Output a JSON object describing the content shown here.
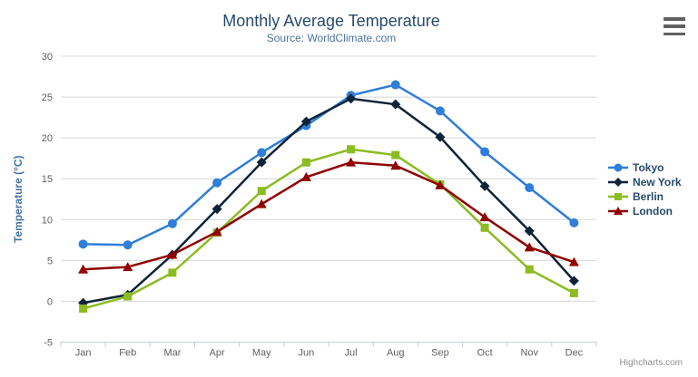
{
  "chart_data": {
    "type": "line",
    "title": "Monthly Average Temperature",
    "subtitle": "Source: WorldClimate.com",
    "xlabel": "",
    "ylabel": "Temperature (°C)",
    "categories": [
      "Jan",
      "Feb",
      "Mar",
      "Apr",
      "May",
      "Jun",
      "Jul",
      "Aug",
      "Sep",
      "Oct",
      "Nov",
      "Dec"
    ],
    "ylim": [
      -5,
      30
    ],
    "yticks": [
      30,
      25,
      20,
      15,
      10,
      5,
      0,
      -5
    ],
    "grid": true,
    "legend_position": "right",
    "series": [
      {
        "name": "Tokyo",
        "color": "#2f7ed8",
        "marker": "circle",
        "values": [
          7.0,
          6.9,
          9.5,
          14.5,
          18.2,
          21.5,
          25.2,
          26.5,
          23.3,
          18.3,
          13.9,
          9.6
        ]
      },
      {
        "name": "New York",
        "color": "#0d233a",
        "marker": "diamond",
        "values": [
          -0.2,
          0.8,
          5.7,
          11.3,
          17.0,
          22.0,
          24.8,
          24.1,
          20.1,
          14.1,
          8.6,
          2.5
        ]
      },
      {
        "name": "Berlin",
        "color": "#8bbc21",
        "marker": "square",
        "values": [
          -0.9,
          0.6,
          3.5,
          8.4,
          13.5,
          17.0,
          18.6,
          17.9,
          14.3,
          9.0,
          3.9,
          1.0
        ]
      },
      {
        "name": "London",
        "color": "#910000",
        "marker": "triangle",
        "values": [
          3.9,
          4.2,
          5.7,
          8.5,
          11.9,
          15.2,
          17.0,
          16.6,
          14.2,
          10.3,
          6.6,
          4.8
        ]
      }
    ],
    "style": {
      "title_color": "#274b6d",
      "subtitle_color": "#4d759e",
      "axis_title_color": "#4572a7",
      "tick_label_color": "#606060",
      "gridline_color": "#d8d8d8",
      "axis_line_color": "#c0d0e0"
    }
  },
  "credits": {
    "label": "Highcharts.com"
  },
  "export_menu": {
    "icon": "hamburger-icon"
  }
}
